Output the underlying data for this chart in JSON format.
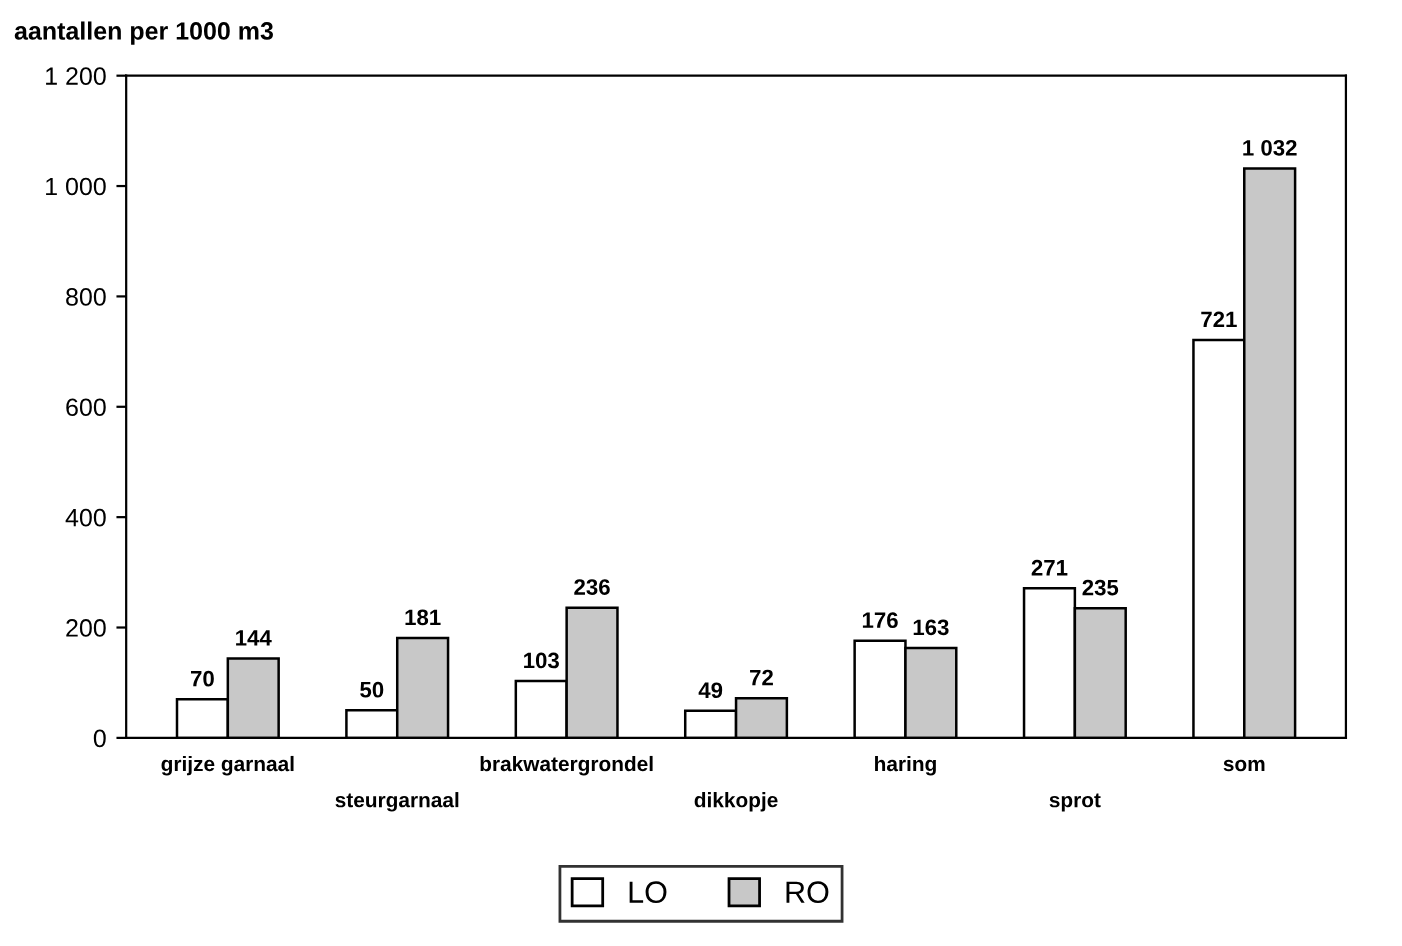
{
  "chart_data": {
    "type": "bar",
    "ylabel": "aantallen per 1000 m3",
    "categories": [
      "grijze garnaal",
      "steurgarnaal",
      "brakwatergrondel",
      "dikkopje",
      "haring",
      "sprot",
      "som"
    ],
    "series": [
      {
        "name": "LO",
        "color": "#ffffff",
        "values": [
          70,
          50,
          103,
          49,
          176,
          271,
          721
        ],
        "value_labels": [
          "70",
          "50",
          "103",
          "49",
          "176",
          "271",
          "721"
        ]
      },
      {
        "name": "RO",
        "color": "#c8c8c8",
        "values": [
          144,
          181,
          236,
          72,
          163,
          235,
          1032
        ],
        "value_labels": [
          "144",
          "181",
          "236",
          "72",
          "163",
          "235",
          "1 032"
        ]
      }
    ],
    "ylim": [
      0,
      1200
    ],
    "yticks": [
      0,
      200,
      400,
      600,
      800,
      {
        "value": 1000,
        "label": "1 000"
      },
      {
        "value": 1200,
        "label": "1 200"
      }
    ],
    "grid": false,
    "legend": "bottom"
  }
}
